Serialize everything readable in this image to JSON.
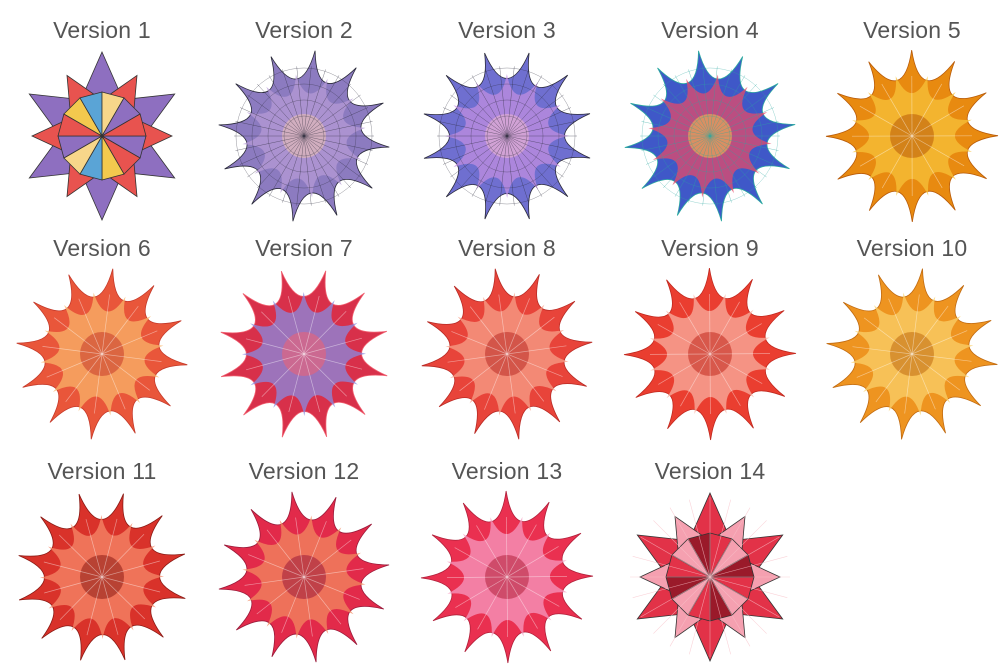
{
  "versions": [
    {
      "label": "Version 1",
      "icon": "stellated-polyhedron-icon",
      "style": "polyhedron",
      "colors": [
        "#8e6fc0",
        "#e8534f",
        "#f3c94e",
        "#5aa4d6",
        "#f7d68a"
      ]
    },
    {
      "label": "Version 2",
      "icon": "spikey-mesh-icon",
      "style": "mesh",
      "colors": [
        "#8c7bc0",
        "#b59ad6",
        "#f0c4b0",
        "#2a2a3a"
      ]
    },
    {
      "label": "Version 3",
      "icon": "spikey-mesh-icon",
      "style": "mesh",
      "colors": [
        "#6f6fd0",
        "#c08ee0",
        "#f1b9d0",
        "#2a2a3a"
      ]
    },
    {
      "label": "Version 4",
      "icon": "spikey-multicolor-icon",
      "style": "mesh",
      "colors": [
        "#3f58c8",
        "#e64b6a",
        "#f3c44a",
        "#2aa8a0"
      ]
    },
    {
      "label": "Version 5",
      "icon": "spikey-orange-icon",
      "style": "spikey",
      "colors": [
        "#e88a10",
        "#f7c23a",
        "#b85a08"
      ]
    },
    {
      "label": "Version 6",
      "icon": "spikey-coral-icon",
      "style": "spikey",
      "colors": [
        "#e9563a",
        "#f8b46a",
        "#c53a2a"
      ]
    },
    {
      "label": "Version 7",
      "icon": "spikey-magenta-icon",
      "style": "spikey",
      "colors": [
        "#d8304a",
        "#8a8ae0",
        "#f06070"
      ]
    },
    {
      "label": "Version 8",
      "icon": "spikey-red-icon",
      "style": "spikey",
      "colors": [
        "#e8443a",
        "#f7a08a",
        "#b82a24"
      ]
    },
    {
      "label": "Version 9",
      "icon": "spikey-red-icon",
      "style": "spikey",
      "colors": [
        "#ea3e30",
        "#f8b0a0",
        "#c0281e"
      ]
    },
    {
      "label": "Version 10",
      "icon": "spikey-amber-icon",
      "style": "spikey",
      "colors": [
        "#ee9420",
        "#fad06a",
        "#c06a10"
      ]
    },
    {
      "label": "Version 11",
      "icon": "spikey-crimson-icon",
      "style": "spikey",
      "colors": [
        "#d9322a",
        "#f58a6a",
        "#8a1a14"
      ]
    },
    {
      "label": "Version 12",
      "icon": "spikey-rose-icon",
      "style": "spikey",
      "colors": [
        "#e22a4a",
        "#f28a60",
        "#9a1a3a"
      ]
    },
    {
      "label": "Version 13",
      "icon": "spikey-pink-icon",
      "style": "spikey",
      "colors": [
        "#ea3050",
        "#f59ac0",
        "#b0203a"
      ]
    },
    {
      "label": "Version 14",
      "icon": "stellated-pink-icon",
      "style": "polyhedron-pink",
      "colors": [
        "#e23248",
        "#f5a0b0",
        "#9a1a2a"
      ]
    }
  ]
}
